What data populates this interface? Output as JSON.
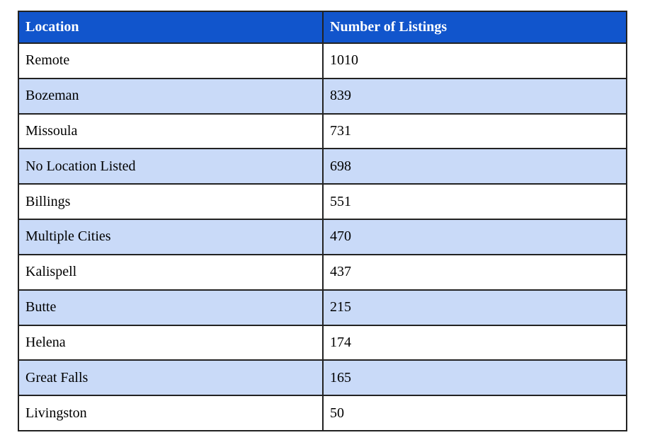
{
  "colors": {
    "header_bg": "#1155cc",
    "header_text": "#ffffff",
    "row_bg": "#ffffff",
    "row_alt_bg": "#c9daf8",
    "border": "#222222",
    "cell_text": "#000000"
  },
  "table": {
    "columns": [
      "Location",
      "Number of Listings"
    ],
    "rows": [
      [
        "Remote",
        "1010"
      ],
      [
        "Bozeman",
        "839"
      ],
      [
        "Missoula",
        "731"
      ],
      [
        "No Location Listed",
        "698"
      ],
      [
        "Billings",
        "551"
      ],
      [
        "Multiple Cities",
        "470"
      ],
      [
        "Kalispell",
        "437"
      ],
      [
        "Butte",
        "215"
      ],
      [
        "Helena",
        "174"
      ],
      [
        "Great Falls",
        "165"
      ],
      [
        "Livingston",
        "50"
      ]
    ]
  },
  "chart_data": {
    "type": "table",
    "title": "",
    "columns": [
      "Location",
      "Number of Listings"
    ],
    "categories": [
      "Remote",
      "Bozeman",
      "Missoula",
      "No Location Listed",
      "Billings",
      "Multiple Cities",
      "Kalispell",
      "Butte",
      "Helena",
      "Great Falls",
      "Livingston"
    ],
    "values": [
      1010,
      839,
      731,
      698,
      551,
      470,
      437,
      215,
      174,
      165,
      50
    ],
    "layout": "two equal columns; blue header row with bold white serif text; data rows alternate white and light cornflower blue; 2px dark grid borders"
  }
}
